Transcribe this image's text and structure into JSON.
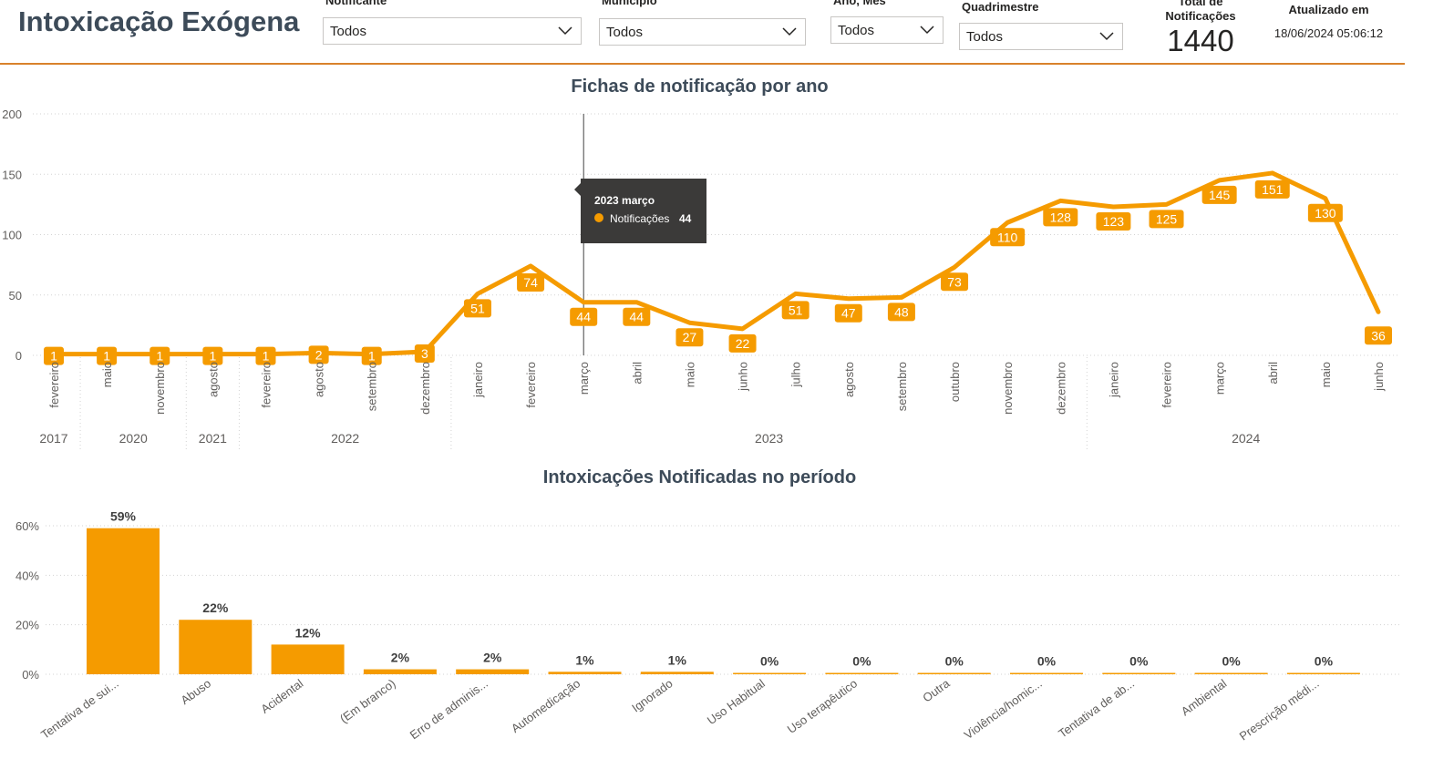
{
  "app": {
    "title": "Intoxicação Exógena"
  },
  "filters": [
    {
      "label": "Notificante",
      "value": "Todos"
    },
    {
      "label": "Município",
      "value": "Todos"
    },
    {
      "label": "Ano, Mês",
      "value": "Todos"
    },
    {
      "label": "Quadrimestre",
      "value": "Todos"
    }
  ],
  "kpi": {
    "label": "Total de Notificações",
    "value": "1440"
  },
  "updated": {
    "label": "Atualizado em",
    "value": "18/06/2024 05:06:12"
  },
  "colors": {
    "accent": "#f59b00",
    "title": "#3d4b59",
    "header_rule": "#d9822b",
    "tooltip_bg": "#3b3a39"
  },
  "tooltip": {
    "title": "2023 março",
    "series": "Notificações",
    "value": "44"
  },
  "chart_data": [
    {
      "type": "line",
      "title": "Fichas de notificação por ano",
      "ylim": [
        0,
        200
      ],
      "yticks": [
        0,
        50,
        100,
        150,
        200
      ],
      "grid": true,
      "months": [
        "fevereiro",
        "maio",
        "novembro",
        "agosto",
        "fevereiro",
        "agosto",
        "setembro",
        "dezembro",
        "janeiro",
        "fevereiro",
        "março",
        "abril",
        "maio",
        "junho",
        "julho",
        "agosto",
        "setembro",
        "outubro",
        "novembro",
        "dezembro",
        "janeiro",
        "fevereiro",
        "março",
        "abril",
        "maio",
        "junho"
      ],
      "years": [
        {
          "label": "2017",
          "count": 1
        },
        {
          "label": "2020",
          "count": 2
        },
        {
          "label": "2021",
          "count": 1
        },
        {
          "label": "2022",
          "count": 4
        },
        {
          "label": "2023",
          "count": 12
        },
        {
          "label": "2024",
          "count": 6
        }
      ],
      "series": [
        {
          "name": "Notificações",
          "values": [
            1,
            1,
            1,
            1,
            1,
            2,
            1,
            3,
            51,
            74,
            44,
            44,
            27,
            22,
            51,
            47,
            48,
            73,
            110,
            128,
            123,
            125,
            145,
            151,
            130,
            36
          ]
        }
      ],
      "highlight_index": 10
    },
    {
      "type": "bar",
      "title": "Intoxicações Notificadas no período",
      "categories": [
        "Tentativa de sui...",
        "Abuso",
        "Acidental",
        "(Em branco)",
        "Erro de adminis...",
        "Automedicação",
        "Ignorado",
        "Uso Habitual",
        "Uso terapêutico",
        "Outra",
        "Violência/homic...",
        "Tentativa de ab...",
        "Ambiental",
        "Prescrição médi..."
      ],
      "values": [
        59,
        22,
        12,
        2,
        2,
        1,
        1,
        0,
        0,
        0,
        0,
        0,
        0,
        0
      ],
      "unit": "%",
      "ylim": [
        0,
        60
      ],
      "yticks": [
        0,
        20,
        40,
        60
      ],
      "grid": true
    }
  ]
}
